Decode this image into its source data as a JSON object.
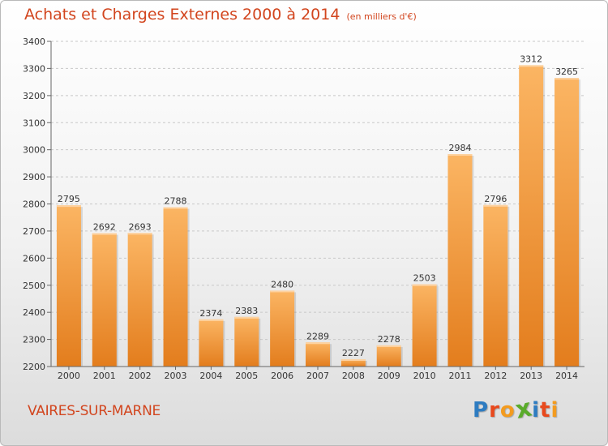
{
  "title": "Achats et Charges Externes 2000 à 2014",
  "subtitle": "(en milliers d'€)",
  "location": "VAIRES-SUR-MARNE",
  "logo": {
    "text": "Proxiti",
    "letters": [
      {
        "char": "P",
        "color": "#2e7cc1"
      },
      {
        "char": "r",
        "color": "#e8491d"
      },
      {
        "char": "o",
        "color": "#f39b1f"
      },
      {
        "char": "x",
        "color": "#5aab2b"
      },
      {
        "char": "i",
        "color": "#2e7cc1"
      },
      {
        "char": "t",
        "color": "#e8491d"
      },
      {
        "char": "i",
        "color": "#f39b1f"
      }
    ]
  },
  "colors": {
    "bar_light": "#fbb563",
    "bar_dark": "#e37d1d",
    "axis": "#666666",
    "grid": "#c8c8c8",
    "title": "#d2451e"
  },
  "chart_data": {
    "type": "bar",
    "categories": [
      "2000",
      "2001",
      "2002",
      "2003",
      "2004",
      "2005",
      "2006",
      "2007",
      "2008",
      "2009",
      "2010",
      "2011",
      "2012",
      "2013",
      "2014"
    ],
    "values": [
      2795,
      2692,
      2693,
      2788,
      2374,
      2383,
      2480,
      2289,
      2227,
      2278,
      2503,
      2984,
      2796,
      3312,
      3265
    ],
    "ylim": [
      2200,
      3400
    ],
    "yticks": [
      2200,
      2300,
      2400,
      2500,
      2600,
      2700,
      2800,
      2900,
      3000,
      3100,
      3200,
      3300,
      3400
    ],
    "grid": true,
    "xlabel": "",
    "ylabel": ""
  }
}
